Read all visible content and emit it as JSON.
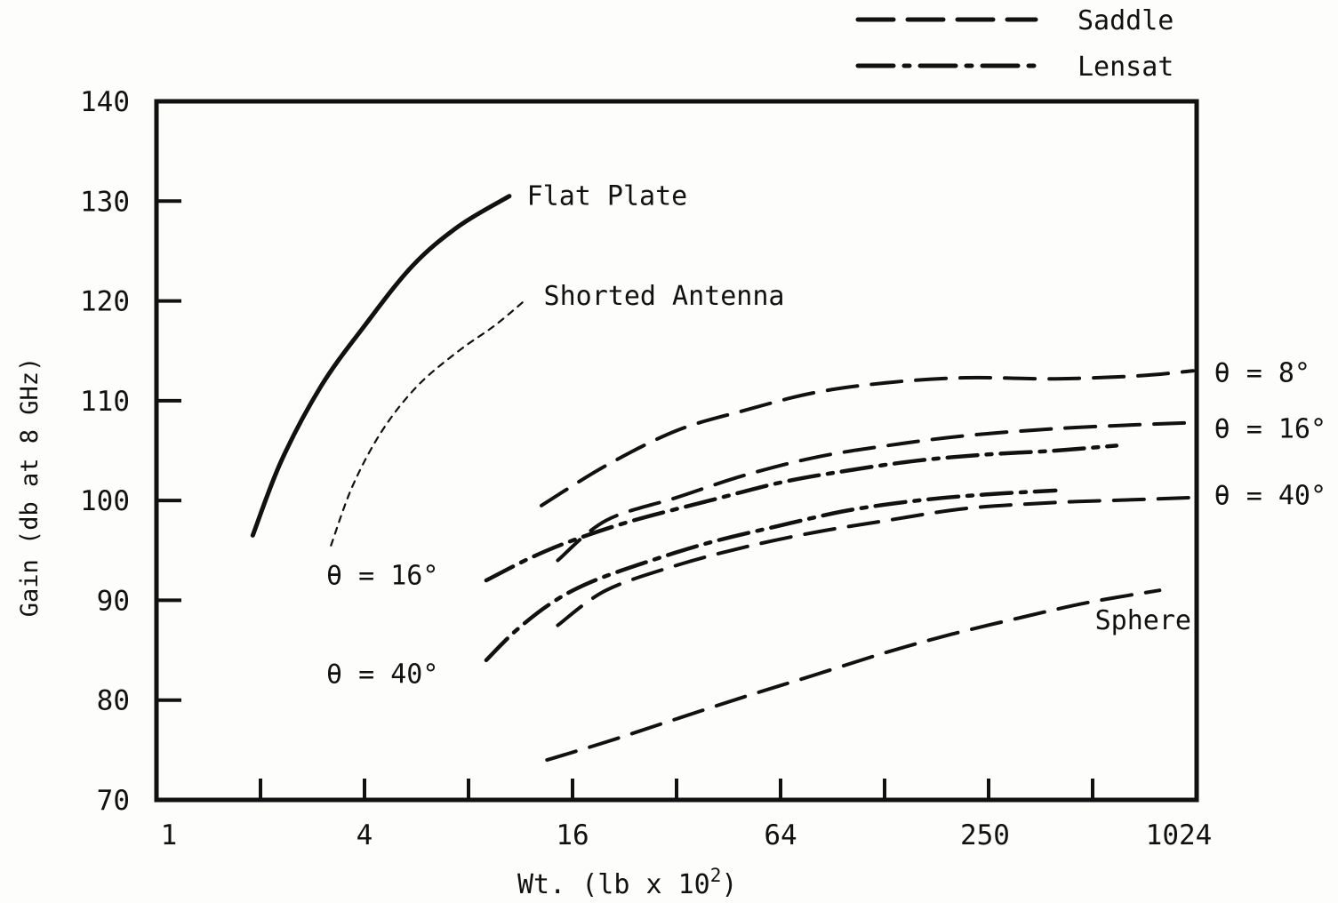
{
  "chart_data": {
    "type": "line",
    "title": "",
    "xlabel": "Wt. (lb x 10",
    "xlabel_sup": "2",
    "xlabel_close": ")",
    "ylabel": "Gain (db at 8 GHz)",
    "x_scale": "log2",
    "xlim": [
      1,
      1024
    ],
    "ylim": [
      70,
      140
    ],
    "x_tick_labels": [
      "1",
      "4",
      "16",
      "64",
      "250",
      "1024"
    ],
    "x_tick_label_values": [
      1,
      4,
      16,
      64,
      250,
      1024
    ],
    "x_minor_ticks": [
      2,
      4,
      8,
      16,
      32,
      64,
      128,
      256,
      512
    ],
    "y_ticks": [
      70,
      80,
      90,
      100,
      110,
      120,
      130,
      140
    ],
    "legend": {
      "placement": "top-right-outside",
      "entries": [
        {
          "label": "Saddle",
          "style": "dashed"
        },
        {
          "label": "Lensat",
          "style": "dash-dot"
        }
      ]
    },
    "series": [
      {
        "name": "Flat Plate",
        "style": "solid",
        "x": [
          1.9,
          2.3,
          3.0,
          4.0,
          5.5,
          7.5,
          10.5
        ],
        "y": [
          96.5,
          104,
          111.5,
          117.5,
          123.5,
          127.5,
          130.5
        ]
      },
      {
        "name": "Shorted Antenna",
        "style": "dotted",
        "x": [
          3.2,
          3.7,
          4.5,
          5.7,
          7.5,
          9.5,
          11.6
        ],
        "y": [
          95.5,
          101.5,
          107,
          111.5,
          115,
          117.5,
          120
        ]
      },
      {
        "name": "Sphere",
        "style": "dashed",
        "x": [
          13.5,
          20,
          30,
          50,
          80,
          130,
          200,
          320,
          500,
          800
        ],
        "y": [
          74,
          75.8,
          77.8,
          80.3,
          82.5,
          84.8,
          86.6,
          88.3,
          89.8,
          91
        ]
      },
      {
        "name": "Saddle θ = 8°",
        "style": "dashed",
        "x": [
          13,
          20,
          32,
          50,
          80,
          130,
          220,
          400,
          700,
          1000
        ],
        "y": [
          99.5,
          103.5,
          107,
          109,
          110.8,
          111.8,
          112.3,
          112.2,
          112.5,
          113
        ]
      },
      {
        "name": "Saddle θ = 16°",
        "style": "dashed",
        "x": [
          14.5,
          20,
          32,
          50,
          80,
          130,
          220,
          400,
          700,
          1000
        ],
        "y": [
          94,
          98,
          100.3,
          102.5,
          104.3,
          105.5,
          106.5,
          107.2,
          107.6,
          107.8
        ]
      },
      {
        "name": "Saddle θ = 40°",
        "style": "dashed",
        "x": [
          14.5,
          20,
          32,
          50,
          80,
          130,
          220,
          400,
          700,
          1000
        ],
        "y": [
          87.5,
          91,
          93.5,
          95.3,
          96.8,
          98,
          99.2,
          99.8,
          100.1,
          100.3
        ]
      },
      {
        "name": "Lensat θ = 16°",
        "style": "dash-dot",
        "x": [
          9,
          12,
          16,
          24,
          40,
          64,
          100,
          160,
          250,
          400,
          600
        ],
        "y": [
          92,
          94.2,
          96,
          98,
          100,
          101.8,
          103,
          104,
          104.6,
          105,
          105.5
        ]
      },
      {
        "name": "Lensat θ = 40°",
        "style": "dash-dot",
        "x": [
          9,
          11,
          14,
          18,
          26,
          40,
          64,
          100,
          160,
          250,
          400
        ],
        "y": [
          84,
          87,
          89.8,
          91.8,
          93.8,
          95.8,
          97.5,
          99,
          100,
          100.6,
          101
        ]
      }
    ],
    "annotations": [
      {
        "text": "Flat Plate",
        "x": 11.8,
        "y": 130.5
      },
      {
        "text": "Shorted Antenna",
        "x": 13.2,
        "y": 120.5
      },
      {
        "text": "Sphere",
        "x": 520,
        "y": 88
      },
      {
        "text": "θ = 8°",
        "x": 1150,
        "y": 112.8
      },
      {
        "text": "θ = 16°",
        "x": 1150,
        "y": 107.2
      },
      {
        "text": "θ = 40°",
        "x": 1150,
        "y": 100.5
      },
      {
        "text": "θ = 16°",
        "x": 3.1,
        "y": 92.5
      },
      {
        "text": "θ = 40°",
        "x": 3.1,
        "y": 82.6
      }
    ]
  }
}
